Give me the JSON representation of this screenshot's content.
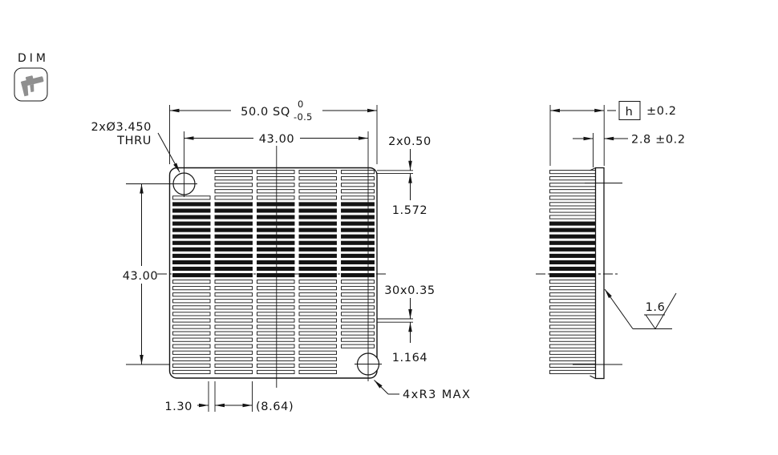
{
  "page": {
    "background": "#ffffff",
    "line_color": "#141414",
    "caliper_color": "#8f8f8f"
  },
  "dim_tool": {
    "label": "DIM",
    "icon": "caliper-icon"
  },
  "front_view": {
    "overall_size": {
      "value": "50.0 SQ",
      "tol_upper": "0",
      "tol_lower": "-0.5"
    },
    "hole_spacing_horizontal": "43.00",
    "hole_spacing_vertical": "43.00",
    "hole_callout_line1": "2xØ3.450",
    "hole_callout_line2": "THRU",
    "end_fin_width": "2x0.50",
    "end_fin_gap": "1.572",
    "fin_count_width": "30x0.35",
    "fin_gap": "1.164",
    "corner_radius": "4xR3 MAX",
    "rib_width": "1.30",
    "slot_width": "(8.64)"
  },
  "side_view": {
    "height_symbol": "h",
    "height_tolerance": "±0.2",
    "base_thickness": "2.8 ±0.2",
    "surface_roughness": "1.6"
  }
}
